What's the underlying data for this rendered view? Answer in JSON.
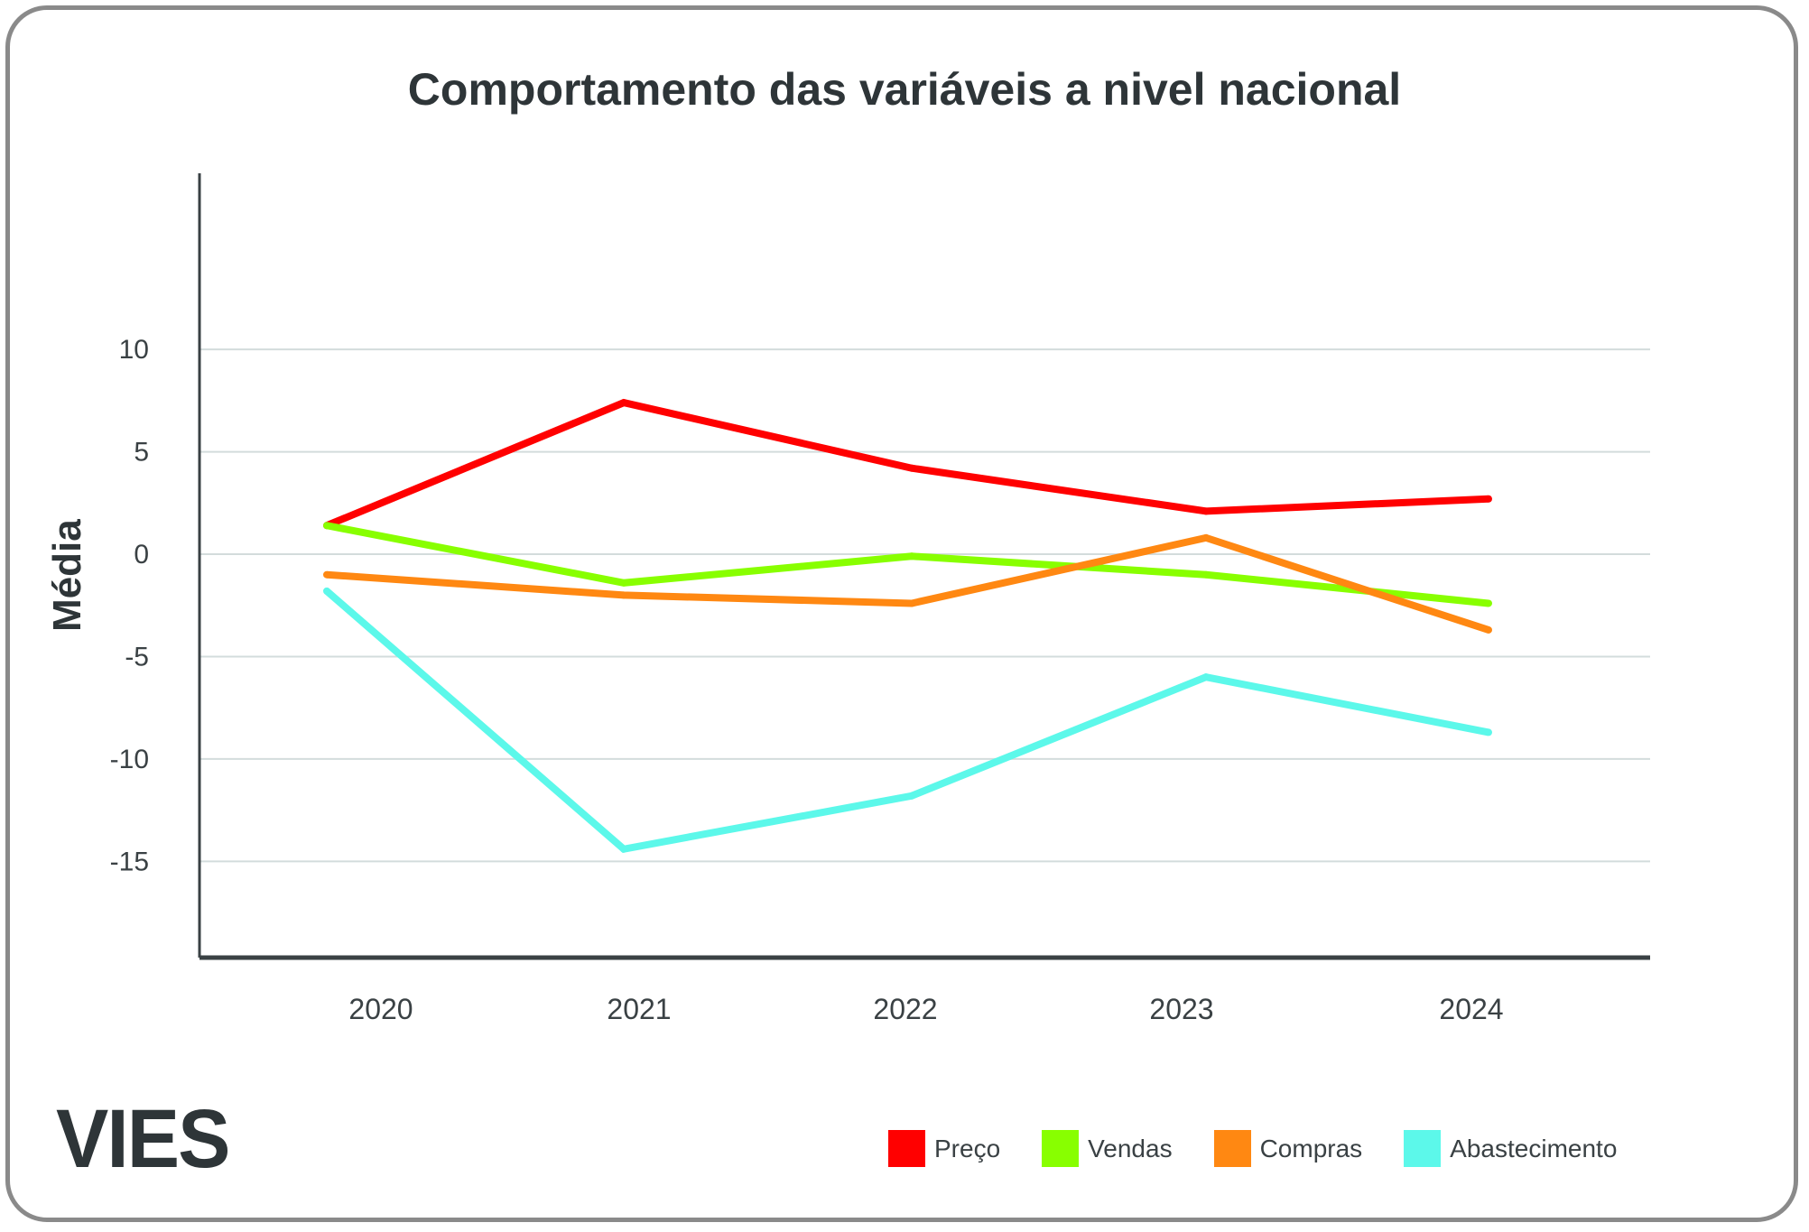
{
  "chart_data": {
    "type": "line",
    "title": "Comportamento das variáveis a nivel nacional",
    "xlabel": "",
    "ylabel": "Média",
    "categories": [
      "2020",
      "2021",
      "2022",
      "2023",
      "2024"
    ],
    "yticks": [
      10,
      5,
      0,
      -5,
      -10,
      -15
    ],
    "ylim": [
      -19.7,
      18.6
    ],
    "grid": true,
    "legend_position": "bottom-right",
    "series": [
      {
        "name": "Preço",
        "color": "#ff0000",
        "values": [
          1.4,
          7.4,
          4.2,
          2.1,
          2.7
        ]
      },
      {
        "name": "Vendas",
        "color": "#88ff00",
        "values": [
          1.4,
          -1.4,
          -0.1,
          -1.0,
          -2.4
        ]
      },
      {
        "name": "Compras",
        "color": "#ff8812",
        "values": [
          -1.0,
          -2.0,
          -2.4,
          0.8,
          -3.7
        ]
      },
      {
        "name": "Abastecimento",
        "color": "#5cf8ea",
        "values": [
          -1.8,
          -14.4,
          -11.8,
          -6.0,
          -8.7
        ]
      }
    ]
  },
  "brand": {
    "logo": "VIES"
  }
}
